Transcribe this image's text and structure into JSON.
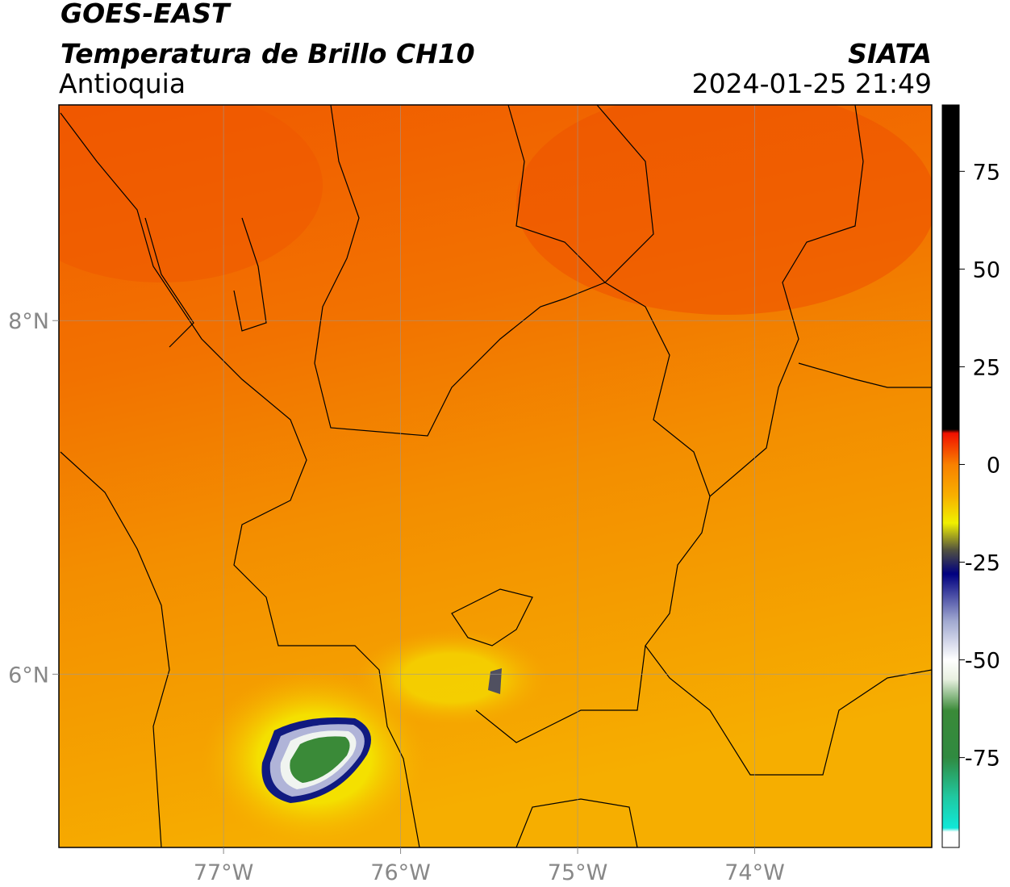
{
  "header": {
    "satellite": "GOES-EAST",
    "product": "Temperatura de Brillo CH10",
    "region": "Antioquia",
    "source": "SIATA",
    "datetime": "2024-01-25 21:49"
  },
  "map": {
    "lon_range": [
      -77.93,
      -73.0
    ],
    "lat_range": [
      5.02,
      9.22
    ],
    "lon_ticks": [
      {
        "value": -77,
        "label": "77°W"
      },
      {
        "value": -76,
        "label": "76°W"
      },
      {
        "value": -75,
        "label": "75°W"
      },
      {
        "value": -74,
        "label": "74°W"
      }
    ],
    "lat_ticks": [
      {
        "value": 8,
        "label": "8°N"
      },
      {
        "value": 6,
        "label": "6°N"
      }
    ],
    "grid": true
  },
  "colorbar": {
    "range": [
      -98,
      92
    ],
    "ticks": [
      75,
      50,
      25,
      0,
      -25,
      -50,
      -75
    ],
    "stops": [
      {
        "value": -98,
        "color": "#ffffff"
      },
      {
        "value": -94,
        "color": "#ffffff"
      },
      {
        "value": -93,
        "color": "#10e8d8"
      },
      {
        "value": -85,
        "color": "#20c8a0"
      },
      {
        "value": -75,
        "color": "#308a40"
      },
      {
        "value": -63,
        "color": "#3a8a38"
      },
      {
        "value": -55,
        "color": "#e8f0e0"
      },
      {
        "value": -50,
        "color": "#ffffff"
      },
      {
        "value": -40,
        "color": "#a0a8d0"
      },
      {
        "value": -28,
        "color": "#000080"
      },
      {
        "value": -22,
        "color": "#505040"
      },
      {
        "value": -15,
        "color": "#f0f000"
      },
      {
        "value": -8,
        "color": "#f8b000"
      },
      {
        "value": 0,
        "color": "#f88000"
      },
      {
        "value": 8,
        "color": "#f01000"
      },
      {
        "value": 9,
        "color": "#000000"
      },
      {
        "value": 92,
        "color": "#000000"
      }
    ]
  }
}
